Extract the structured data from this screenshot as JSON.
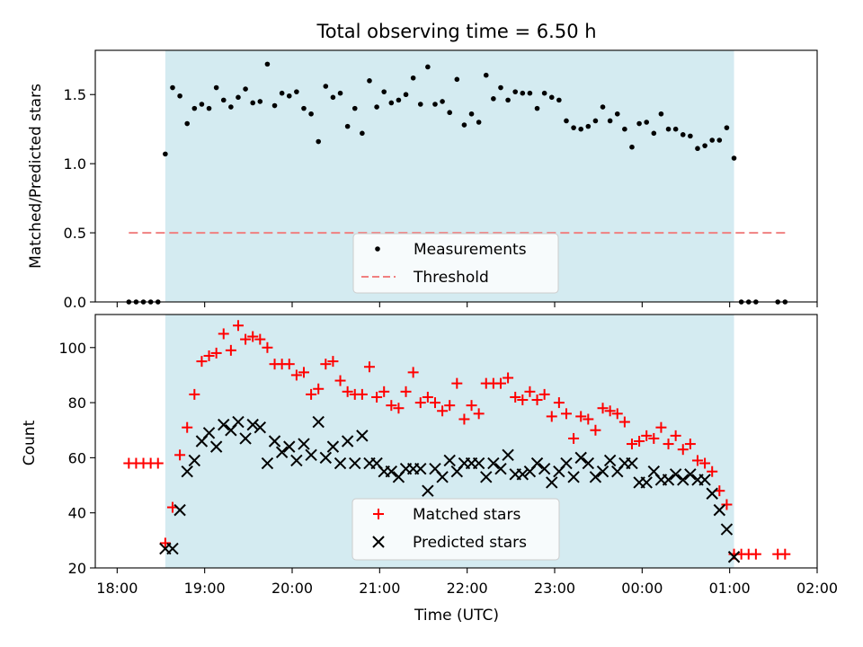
{
  "chart_data": [
    {
      "type": "scatter",
      "title": "Total observing time = 6.50 h",
      "ylabel": "Matched/Predicted stars",
      "ylim": [
        0,
        1.82
      ],
      "yticks": [
        0.0,
        0.5,
        1.0,
        1.5
      ],
      "ytick_labels": [
        "0.0",
        "0.5",
        "1.0",
        "1.5"
      ],
      "legend_placement": "lower-center",
      "observing_window": [
        "18:33",
        "01:03"
      ],
      "colors": {
        "measurements": "#000000",
        "threshold": "#f08080",
        "window": "#d4ebf1"
      },
      "series": [
        {
          "name": "Measurements",
          "marker": "dot",
          "points": [
            [
              "18:08",
              0.0
            ],
            [
              "18:13",
              0.0
            ],
            [
              "18:18",
              0.0
            ],
            [
              "18:23",
              0.0
            ],
            [
              "18:28",
              0.0
            ],
            [
              "18:33",
              1.07
            ],
            [
              "18:38",
              1.55
            ],
            [
              "18:43",
              1.49
            ],
            [
              "18:48",
              1.29
            ],
            [
              "18:53",
              1.4
            ],
            [
              "18:58",
              1.43
            ],
            [
              "19:03",
              1.4
            ],
            [
              "19:08",
              1.55
            ],
            [
              "19:13",
              1.46
            ],
            [
              "19:18",
              1.41
            ],
            [
              "19:23",
              1.48
            ],
            [
              "19:28",
              1.54
            ],
            [
              "19:33",
              1.44
            ],
            [
              "19:38",
              1.45
            ],
            [
              "19:43",
              1.72
            ],
            [
              "19:48",
              1.42
            ],
            [
              "19:53",
              1.51
            ],
            [
              "19:58",
              1.49
            ],
            [
              "20:03",
              1.52
            ],
            [
              "20:08",
              1.4
            ],
            [
              "20:13",
              1.36
            ],
            [
              "20:18",
              1.16
            ],
            [
              "20:23",
              1.56
            ],
            [
              "20:28",
              1.48
            ],
            [
              "20:33",
              1.51
            ],
            [
              "20:38",
              1.27
            ],
            [
              "20:43",
              1.4
            ],
            [
              "20:48",
              1.22
            ],
            [
              "20:53",
              1.6
            ],
            [
              "20:58",
              1.41
            ],
            [
              "21:03",
              1.52
            ],
            [
              "21:08",
              1.44
            ],
            [
              "21:13",
              1.46
            ],
            [
              "21:18",
              1.5
            ],
            [
              "21:23",
              1.62
            ],
            [
              "21:28",
              1.43
            ],
            [
              "21:33",
              1.7
            ],
            [
              "21:38",
              1.43
            ],
            [
              "21:43",
              1.45
            ],
            [
              "21:48",
              1.37
            ],
            [
              "21:53",
              1.61
            ],
            [
              "21:58",
              1.28
            ],
            [
              "22:03",
              1.36
            ],
            [
              "22:08",
              1.3
            ],
            [
              "22:13",
              1.64
            ],
            [
              "22:18",
              1.47
            ],
            [
              "22:23",
              1.55
            ],
            [
              "22:28",
              1.46
            ],
            [
              "22:33",
              1.52
            ],
            [
              "22:38",
              1.51
            ],
            [
              "22:43",
              1.51
            ],
            [
              "22:48",
              1.4
            ],
            [
              "22:53",
              1.51
            ],
            [
              "22:58",
              1.48
            ],
            [
              "23:03",
              1.46
            ],
            [
              "23:08",
              1.31
            ],
            [
              "23:13",
              1.26
            ],
            [
              "23:18",
              1.25
            ],
            [
              "23:23",
              1.27
            ],
            [
              "23:28",
              1.31
            ],
            [
              "23:33",
              1.41
            ],
            [
              "23:38",
              1.31
            ],
            [
              "23:43",
              1.36
            ],
            [
              "23:48",
              1.25
            ],
            [
              "23:53",
              1.12
            ],
            [
              "23:58",
              1.29
            ],
            [
              "00:03",
              1.3
            ],
            [
              "00:08",
              1.22
            ],
            [
              "00:13",
              1.36
            ],
            [
              "00:18",
              1.25
            ],
            [
              "00:23",
              1.25
            ],
            [
              "00:28",
              1.21
            ],
            [
              "00:33",
              1.2
            ],
            [
              "00:38",
              1.11
            ],
            [
              "00:43",
              1.13
            ],
            [
              "00:48",
              1.17
            ],
            [
              "00:53",
              1.17
            ],
            [
              "00:58",
              1.26
            ],
            [
              "01:03",
              1.04
            ],
            [
              "01:08",
              0.0
            ],
            [
              "01:13",
              0.0
            ],
            [
              "01:18",
              0.0
            ],
            [
              "01:33",
              0.0
            ],
            [
              "01:38",
              0.0
            ]
          ]
        },
        {
          "name": "Threshold",
          "marker": "dashed-line",
          "points": [
            [
              "18:08",
              0.5
            ],
            [
              "01:38",
              0.5
            ]
          ]
        }
      ]
    },
    {
      "type": "scatter",
      "xlabel": "Time (UTC)",
      "ylabel": "Count",
      "xlim": [
        "17:45",
        "02:00"
      ],
      "ylim": [
        20,
        112
      ],
      "xticks": [
        "18:00",
        "19:00",
        "20:00",
        "21:00",
        "22:00",
        "23:00",
        "00:00",
        "01:00",
        "02:00"
      ],
      "yticks": [
        20,
        40,
        60,
        80,
        100
      ],
      "legend_placement": "lower-center",
      "observing_window": [
        "18:33",
        "01:03"
      ],
      "colors": {
        "matched": "#ff0000",
        "predicted": "#000000",
        "window": "#d4ebf1"
      },
      "series": [
        {
          "name": "Matched stars",
          "marker": "plus",
          "points": [
            [
              "18:08",
              58
            ],
            [
              "18:13",
              58
            ],
            [
              "18:18",
              58
            ],
            [
              "18:23",
              58
            ],
            [
              "18:28",
              58
            ],
            [
              "18:33",
              29
            ],
            [
              "18:38",
              42
            ],
            [
              "18:43",
              61
            ],
            [
              "18:48",
              71
            ],
            [
              "18:53",
              83
            ],
            [
              "18:58",
              95
            ],
            [
              "19:03",
              97
            ],
            [
              "19:08",
              98
            ],
            [
              "19:13",
              105
            ],
            [
              "19:18",
              99
            ],
            [
              "19:23",
              108
            ],
            [
              "19:28",
              103
            ],
            [
              "19:33",
              104
            ],
            [
              "19:38",
              103
            ],
            [
              "19:43",
              100
            ],
            [
              "19:48",
              94
            ],
            [
              "19:53",
              94
            ],
            [
              "19:58",
              94
            ],
            [
              "20:03",
              90
            ],
            [
              "20:08",
              91
            ],
            [
              "20:13",
              83
            ],
            [
              "20:18",
              85
            ],
            [
              "20:23",
              94
            ],
            [
              "20:28",
              95
            ],
            [
              "20:33",
              88
            ],
            [
              "20:38",
              84
            ],
            [
              "20:43",
              83
            ],
            [
              "20:48",
              83
            ],
            [
              "20:53",
              93
            ],
            [
              "20:58",
              82
            ],
            [
              "21:03",
              84
            ],
            [
              "21:08",
              79
            ],
            [
              "21:13",
              78
            ],
            [
              "21:18",
              84
            ],
            [
              "21:23",
              91
            ],
            [
              "21:28",
              80
            ],
            [
              "21:33",
              82
            ],
            [
              "21:38",
              80
            ],
            [
              "21:43",
              77
            ],
            [
              "21:48",
              79
            ],
            [
              "21:53",
              87
            ],
            [
              "21:58",
              74
            ],
            [
              "22:03",
              79
            ],
            [
              "22:08",
              76
            ],
            [
              "22:13",
              87
            ],
            [
              "22:18",
              87
            ],
            [
              "22:23",
              87
            ],
            [
              "22:28",
              89
            ],
            [
              "22:33",
              82
            ],
            [
              "22:38",
              81
            ],
            [
              "22:43",
              84
            ],
            [
              "22:48",
              81
            ],
            [
              "22:53",
              83
            ],
            [
              "22:58",
              75
            ],
            [
              "23:03",
              80
            ],
            [
              "23:08",
              76
            ],
            [
              "23:13",
              67
            ],
            [
              "23:18",
              75
            ],
            [
              "23:23",
              74
            ],
            [
              "23:28",
              70
            ],
            [
              "23:33",
              78
            ],
            [
              "23:38",
              77
            ],
            [
              "23:43",
              76
            ],
            [
              "23:48",
              73
            ],
            [
              "23:53",
              65
            ],
            [
              "23:58",
              66
            ],
            [
              "00:03",
              68
            ],
            [
              "00:08",
              67
            ],
            [
              "00:13",
              71
            ],
            [
              "00:18",
              65
            ],
            [
              "00:23",
              68
            ],
            [
              "00:28",
              63
            ],
            [
              "00:33",
              65
            ],
            [
              "00:38",
              59
            ],
            [
              "00:43",
              58
            ],
            [
              "00:48",
              55
            ],
            [
              "00:53",
              48
            ],
            [
              "00:58",
              43
            ],
            [
              "01:03",
              25
            ],
            [
              "01:08",
              25
            ],
            [
              "01:13",
              25
            ],
            [
              "01:18",
              25
            ],
            [
              "01:33",
              25
            ],
            [
              "01:38",
              25
            ]
          ]
        },
        {
          "name": "Predicted stars",
          "marker": "x",
          "points": [
            [
              "18:33",
              27
            ],
            [
              "18:38",
              27
            ],
            [
              "18:43",
              41
            ],
            [
              "18:48",
              55
            ],
            [
              "18:53",
              59
            ],
            [
              "18:58",
              66
            ],
            [
              "19:03",
              69
            ],
            [
              "19:08",
              64
            ],
            [
              "19:13",
              72
            ],
            [
              "19:18",
              70
            ],
            [
              "19:23",
              73
            ],
            [
              "19:28",
              67
            ],
            [
              "19:33",
              72
            ],
            [
              "19:38",
              71
            ],
            [
              "19:43",
              58
            ],
            [
              "19:48",
              66
            ],
            [
              "19:53",
              62
            ],
            [
              "19:58",
              64
            ],
            [
              "20:03",
              59
            ],
            [
              "20:08",
              65
            ],
            [
              "20:13",
              61
            ],
            [
              "20:18",
              73
            ],
            [
              "20:23",
              60
            ],
            [
              "20:28",
              64
            ],
            [
              "20:33",
              58
            ],
            [
              "20:38",
              66
            ],
            [
              "20:43",
              58
            ],
            [
              "20:48",
              68
            ],
            [
              "20:53",
              58
            ],
            [
              "20:58",
              58
            ],
            [
              "21:03",
              55
            ],
            [
              "21:08",
              55
            ],
            [
              "21:13",
              53
            ],
            [
              "21:18",
              56
            ],
            [
              "21:23",
              56
            ],
            [
              "21:28",
              56
            ],
            [
              "21:33",
              48
            ],
            [
              "21:38",
              56
            ],
            [
              "21:43",
              53
            ],
            [
              "21:48",
              59
            ],
            [
              "21:53",
              55
            ],
            [
              "21:58",
              58
            ],
            [
              "22:03",
              58
            ],
            [
              "22:08",
              58
            ],
            [
              "22:13",
              53
            ],
            [
              "22:18",
              58
            ],
            [
              "22:23",
              56
            ],
            [
              "22:28",
              61
            ],
            [
              "22:33",
              54
            ],
            [
              "22:38",
              54
            ],
            [
              "22:43",
              55
            ],
            [
              "22:48",
              58
            ],
            [
              "22:53",
              56
            ],
            [
              "22:58",
              51
            ],
            [
              "23:03",
              55
            ],
            [
              "23:08",
              58
            ],
            [
              "23:13",
              53
            ],
            [
              "23:18",
              60
            ],
            [
              "23:23",
              58
            ],
            [
              "23:28",
              53
            ],
            [
              "23:33",
              55
            ],
            [
              "23:38",
              59
            ],
            [
              "23:43",
              55
            ],
            [
              "23:48",
              58
            ],
            [
              "23:53",
              58
            ],
            [
              "23:58",
              51
            ],
            [
              "00:03",
              51
            ],
            [
              "00:08",
              55
            ],
            [
              "00:13",
              52
            ],
            [
              "00:18",
              52
            ],
            [
              "00:23",
              54
            ],
            [
              "00:28",
              52
            ],
            [
              "00:33",
              54
            ],
            [
              "00:38",
              52
            ],
            [
              "00:43",
              52
            ],
            [
              "00:48",
              47
            ],
            [
              "00:53",
              41
            ],
            [
              "00:58",
              34
            ],
            [
              "01:03",
              24
            ]
          ]
        }
      ]
    }
  ]
}
